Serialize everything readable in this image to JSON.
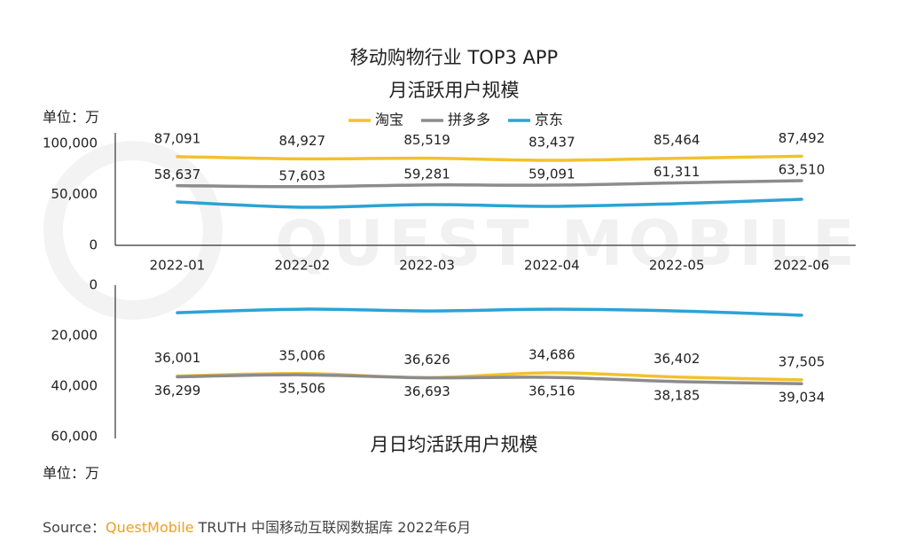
{
  "watermark": "QUEST MOBILE",
  "source": {
    "prefix": "Source：",
    "brand": "QuestMobile",
    "rest": "TRUTH 中国移动互联网数据库 2022年6月"
  },
  "chart_data": [
    {
      "type": "line",
      "title": "移动购物行业 TOP3 APP",
      "subtitle": "月活跃用户规模",
      "unit": "单位：万",
      "categories": [
        "2022-01",
        "2022-02",
        "2022-03",
        "2022-04",
        "2022-05",
        "2022-06"
      ],
      "ylim": [
        0,
        100000
      ],
      "yticks": [
        0,
        {
          "value": 50000,
          "label": "50,000"
        },
        {
          "value": 100000,
          "label": "100,000"
        }
      ],
      "legend": "top",
      "series": [
        {
          "name": "淘宝",
          "color": "#f2c12e",
          "label_position": "above",
          "values": [
            87091,
            84927,
            85519,
            83437,
            85464,
            87492
          ],
          "value_labels": [
            "87,091",
            "84,927",
            "85,519",
            "83,437",
            "85,464",
            "87,492"
          ]
        },
        {
          "name": "拼多多",
          "color": "#8c8c8c",
          "label_position": "above",
          "values": [
            58637,
            57603,
            59281,
            59091,
            61311,
            63510
          ],
          "value_labels": [
            "58,637",
            "57,603",
            "59,281",
            "59,091",
            "61,311",
            "63,510"
          ]
        },
        {
          "name": "京东",
          "color": "#2ba3d6",
          "values": [
            42600,
            37400,
            40000,
            38300,
            40900,
            45200
          ]
        }
      ]
    },
    {
      "type": "line",
      "title": "月日均活跃用户规模",
      "unit": "单位：万",
      "y_inverted": true,
      "ylim": [
        0,
        60000
      ],
      "yticks": [
        0,
        {
          "value": 20000,
          "label": "20,000"
        },
        {
          "value": 40000,
          "label": "40,000"
        },
        {
          "value": 60000,
          "label": "60,000"
        }
      ],
      "series": [
        {
          "color": "#f2c12e",
          "label_position": "above",
          "values": [
            36001,
            35006,
            36626,
            34686,
            36402,
            37505
          ],
          "value_labels": [
            "36,001",
            "35,006",
            "36,626",
            "34,686",
            "36,402",
            "37,505"
          ]
        },
        {
          "color": "#8c8c8c",
          "label_position": "below",
          "values": [
            36299,
            35506,
            36693,
            36516,
            38185,
            39034
          ],
          "value_labels": [
            "36,299",
            "35,506",
            "36,693",
            "36,516",
            "38,185",
            "39,034"
          ]
        },
        {
          "color": "#2ba3d6",
          "values": [
            10900,
            9500,
            10200,
            9500,
            10200,
            11900
          ]
        }
      ]
    }
  ]
}
